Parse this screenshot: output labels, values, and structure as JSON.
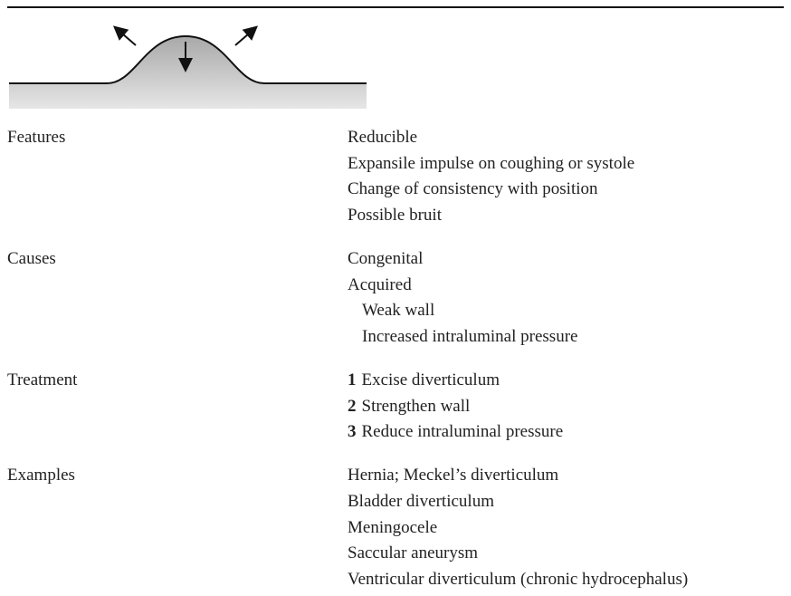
{
  "table": {
    "rows": [
      {
        "label": "Features",
        "items": [
          "Reducible",
          "Expansile impulse on coughing or systole",
          "Change of consistency with position",
          "Possible bruit"
        ]
      },
      {
        "label": "Causes",
        "items": [
          "Congenital",
          {
            "text": "Acquired",
            "children": [
              "Weak wall",
              "Increased intraluminal pressure"
            ]
          }
        ]
      },
      {
        "label": "Treatment",
        "items": [
          {
            "number": 1,
            "text": "Excise diverticulum"
          },
          {
            "number": 2,
            "text": "Strengthen wall"
          },
          {
            "number": 3,
            "text": "Reduce intraluminal pressure"
          }
        ]
      },
      {
        "label": "Examples",
        "items": [
          "Hernia; Meckel’s diverticulum",
          "Bladder diverticulum",
          "Meningocele",
          "Saccular aneurysm",
          "Ventricular diverticulum (chronic hydrocephalus)"
        ]
      }
    ]
  }
}
